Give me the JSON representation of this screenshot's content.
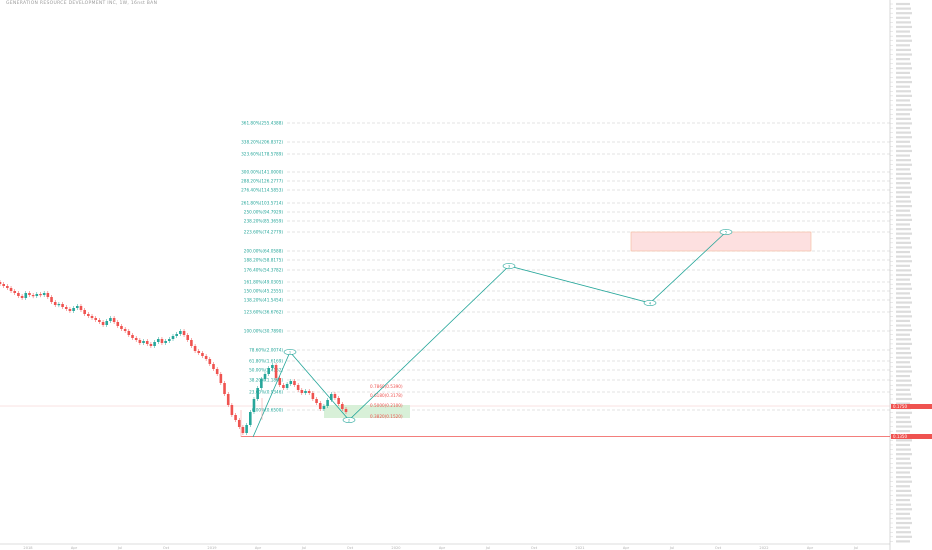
{
  "header": {
    "symbol_line": "GENERATION RESOURCE DEVELOPMENT INC, 1W, 16nst BAN"
  },
  "colors": {
    "up": "#26a69a",
    "down": "#ef5350",
    "level": "#26a69a",
    "path": "#26a69a",
    "grid": "#c8c8c8",
    "price_tag": "#ef5350",
    "zone_fill": "#fde0e0",
    "zone_border": "#f4b89a",
    "buy_zone": "#d8f0d8"
  },
  "chart_data": {
    "type": "candlestick",
    "y_axis": {
      "scale": "log",
      "ticks": [
        "1/2e",
        "8.0000",
        "7.0000",
        "6.0000",
        "5.0000",
        "4.0000",
        "3.0000",
        "2.0000",
        "1.0000",
        "0.9000",
        "0.8000",
        "0.7000",
        "0.6000",
        "0.5000",
        "0.4000",
        "0.3000",
        "0.2000",
        "0.1000"
      ],
      "current_price_tag": "0.1750",
      "low_price_tag": "0.1350"
    },
    "x_axis": {
      "ticks": [
        "2018",
        "Apr",
        "Jul",
        "Oct",
        "2019",
        "Apr",
        "Jul",
        "Oct",
        "2020",
        "Apr",
        "Jul",
        "Oct",
        "2021",
        "Apr",
        "Jul",
        "Oct",
        "2022",
        "Apr",
        "Jul"
      ]
    },
    "fib_levels_upper": [
      "361.80%(255.4388)",
      "338.20%(206.8372)",
      "323.60%(178.5789)",
      "300.00%(141.0000)",
      "288.20%(126.2777)",
      "276.40%(114.5853)",
      "261.80%(103.5714)",
      "250.00%(94.7929)",
      "238.20%(85.3659)",
      "223.60%(74.2779)",
      "200.00%(64.0588)",
      "188.20%(58.8175)",
      "176.40%(54.3782)",
      "161.80%(49.0305)",
      "150.00%(45.2555)",
      "138.20%(41.5454)",
      "123.60%(36.6762)",
      "100.00%(30.7890)"
    ],
    "fib_levels_lower": [
      "78.60%(2.0074)",
      "61.80%(1.6169)",
      "50.00%(1.4162)",
      "38.20%(1.1864)",
      "23.60%(0.9346)",
      "0.00%(0.6500)"
    ],
    "retrace_labels": [
      "0.7860(0.5390)",
      "0.6180(0.3178)",
      "0.5000(0.2100)",
      "0.3820(0.1520)"
    ],
    "wave_labels": [
      "1",
      "2",
      "3",
      "4",
      "5"
    ]
  }
}
